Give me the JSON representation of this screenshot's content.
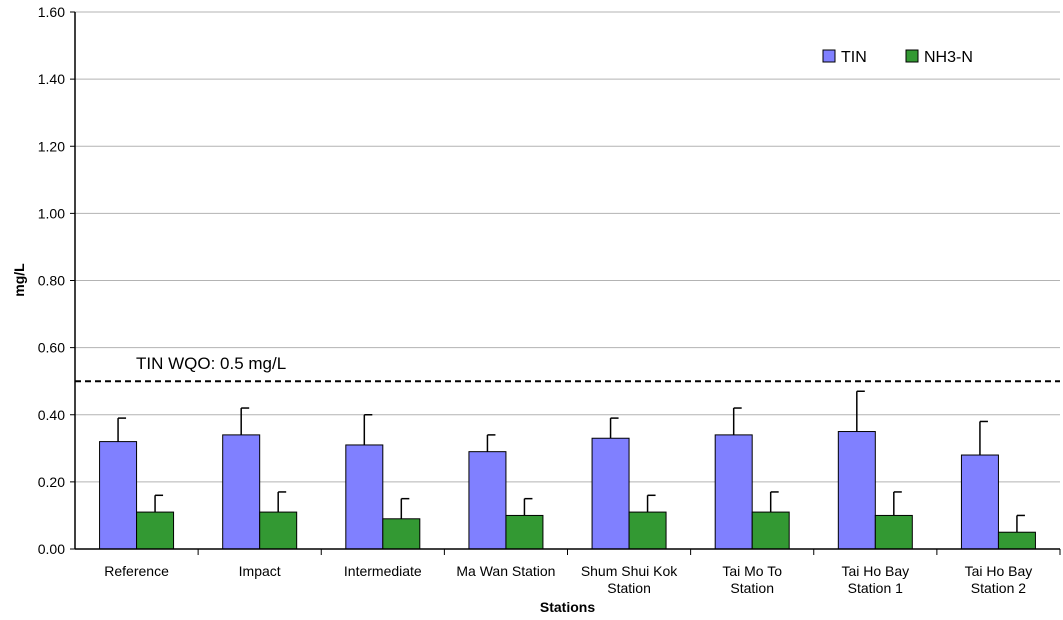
{
  "chart_data": {
    "type": "bar",
    "xlabel": "Stations",
    "ylabel": "mg/L",
    "ylim": [
      0,
      1.6
    ],
    "yticks": [
      "0.00",
      "0.20",
      "0.40",
      "0.60",
      "0.80",
      "1.00",
      "1.20",
      "1.40",
      "1.60"
    ],
    "grid": true,
    "legend_position": "top-right",
    "categories": [
      [
        "Reference"
      ],
      [
        "Impact"
      ],
      [
        "Intermediate"
      ],
      [
        "Ma Wan Station"
      ],
      [
        "Shum Shui Kok",
        "Station"
      ],
      [
        "Tai Mo To",
        "Station"
      ],
      [
        "Tai Ho Bay",
        "Station 1"
      ],
      [
        "Tai Ho Bay",
        "Station 2"
      ]
    ],
    "series": [
      {
        "name": "TIN",
        "color": "#8080ff",
        "values": [
          0.32,
          0.34,
          0.31,
          0.29,
          0.33,
          0.34,
          0.35,
          0.28
        ],
        "error_upper": [
          0.39,
          0.42,
          0.4,
          0.34,
          0.39,
          0.42,
          0.47,
          0.38
        ]
      },
      {
        "name": "NH3-N",
        "color": "#339933",
        "values": [
          0.11,
          0.11,
          0.09,
          0.1,
          0.11,
          0.11,
          0.1,
          0.05
        ],
        "error_upper": [
          0.16,
          0.17,
          0.15,
          0.15,
          0.16,
          0.17,
          0.17,
          0.1
        ]
      }
    ],
    "reference_line": {
      "value": 0.5,
      "label": "TIN WQO: 0.5 mg/L",
      "style": "dashed"
    }
  }
}
